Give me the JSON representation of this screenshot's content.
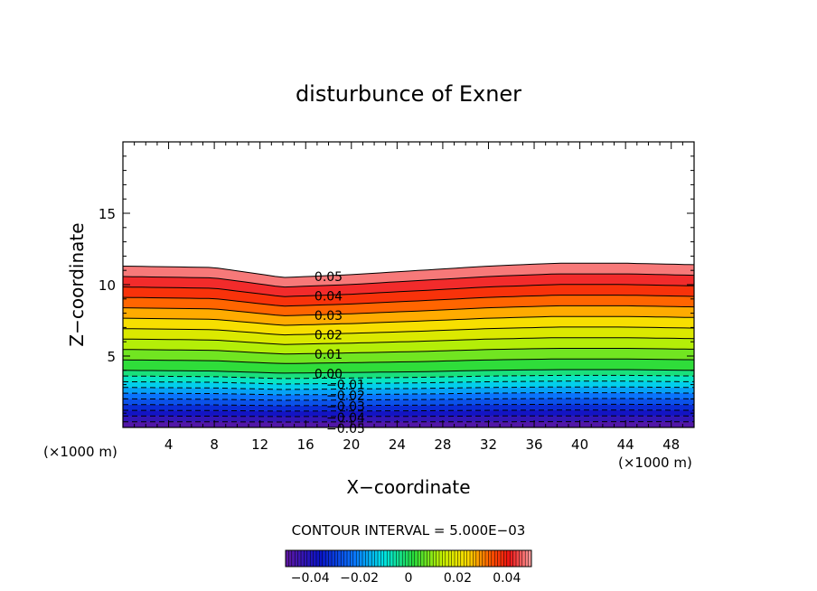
{
  "chart_data": {
    "type": "contour",
    "title": "disturbunce of Exner",
    "xlabel": "X−coordinate",
    "ylabel": "Z−coordinate",
    "x_unit_left": "(×1000 m)",
    "x_unit_right": "(×1000 m)",
    "xlim": [
      0,
      50
    ],
    "ylim": [
      0,
      20
    ],
    "xticks": [
      "4",
      "8",
      "12",
      "16",
      "20",
      "24",
      "28",
      "32",
      "36",
      "40",
      "44",
      "48"
    ],
    "yticks": [
      "5",
      "10",
      "15"
    ],
    "contour_interval_text": "CONTOUR INTERVAL = 5.000E−03",
    "contour_interval": 0.005,
    "levels": [
      -0.05,
      -0.045,
      -0.04,
      -0.035,
      -0.03,
      -0.025,
      -0.02,
      -0.015,
      -0.01,
      -0.005,
      0.0,
      0.005,
      0.01,
      0.015,
      0.02,
      0.025,
      0.03,
      0.035,
      0.04,
      0.045,
      0.05
    ],
    "negative_contours_dashed": true,
    "level_height_at_x": {
      "x": [
        0,
        8,
        14,
        20,
        26,
        32,
        38,
        44,
        50
      ],
      "z_of_0_05": [
        11.3,
        11.2,
        10.5,
        10.7,
        11.0,
        11.3,
        11.5,
        11.5,
        11.4
      ],
      "z_of_0_0": [
        4.0,
        3.95,
        3.8,
        3.85,
        3.9,
        4.0,
        4.05,
        4.05,
        4.0
      ]
    },
    "contour_labels": [
      "0.05",
      "0.04",
      "0.03",
      "0.02",
      "0.01",
      "0.00",
      "−0.01",
      "−0.02",
      "−0.03",
      "−0.04",
      "−0.05"
    ],
    "colorbar": {
      "ticks": [
        "−0.04",
        "−0.02",
        "0",
        "0.02",
        "0.04"
      ],
      "range": [
        -0.05,
        0.05
      ],
      "colormap": "rainbow"
    }
  }
}
